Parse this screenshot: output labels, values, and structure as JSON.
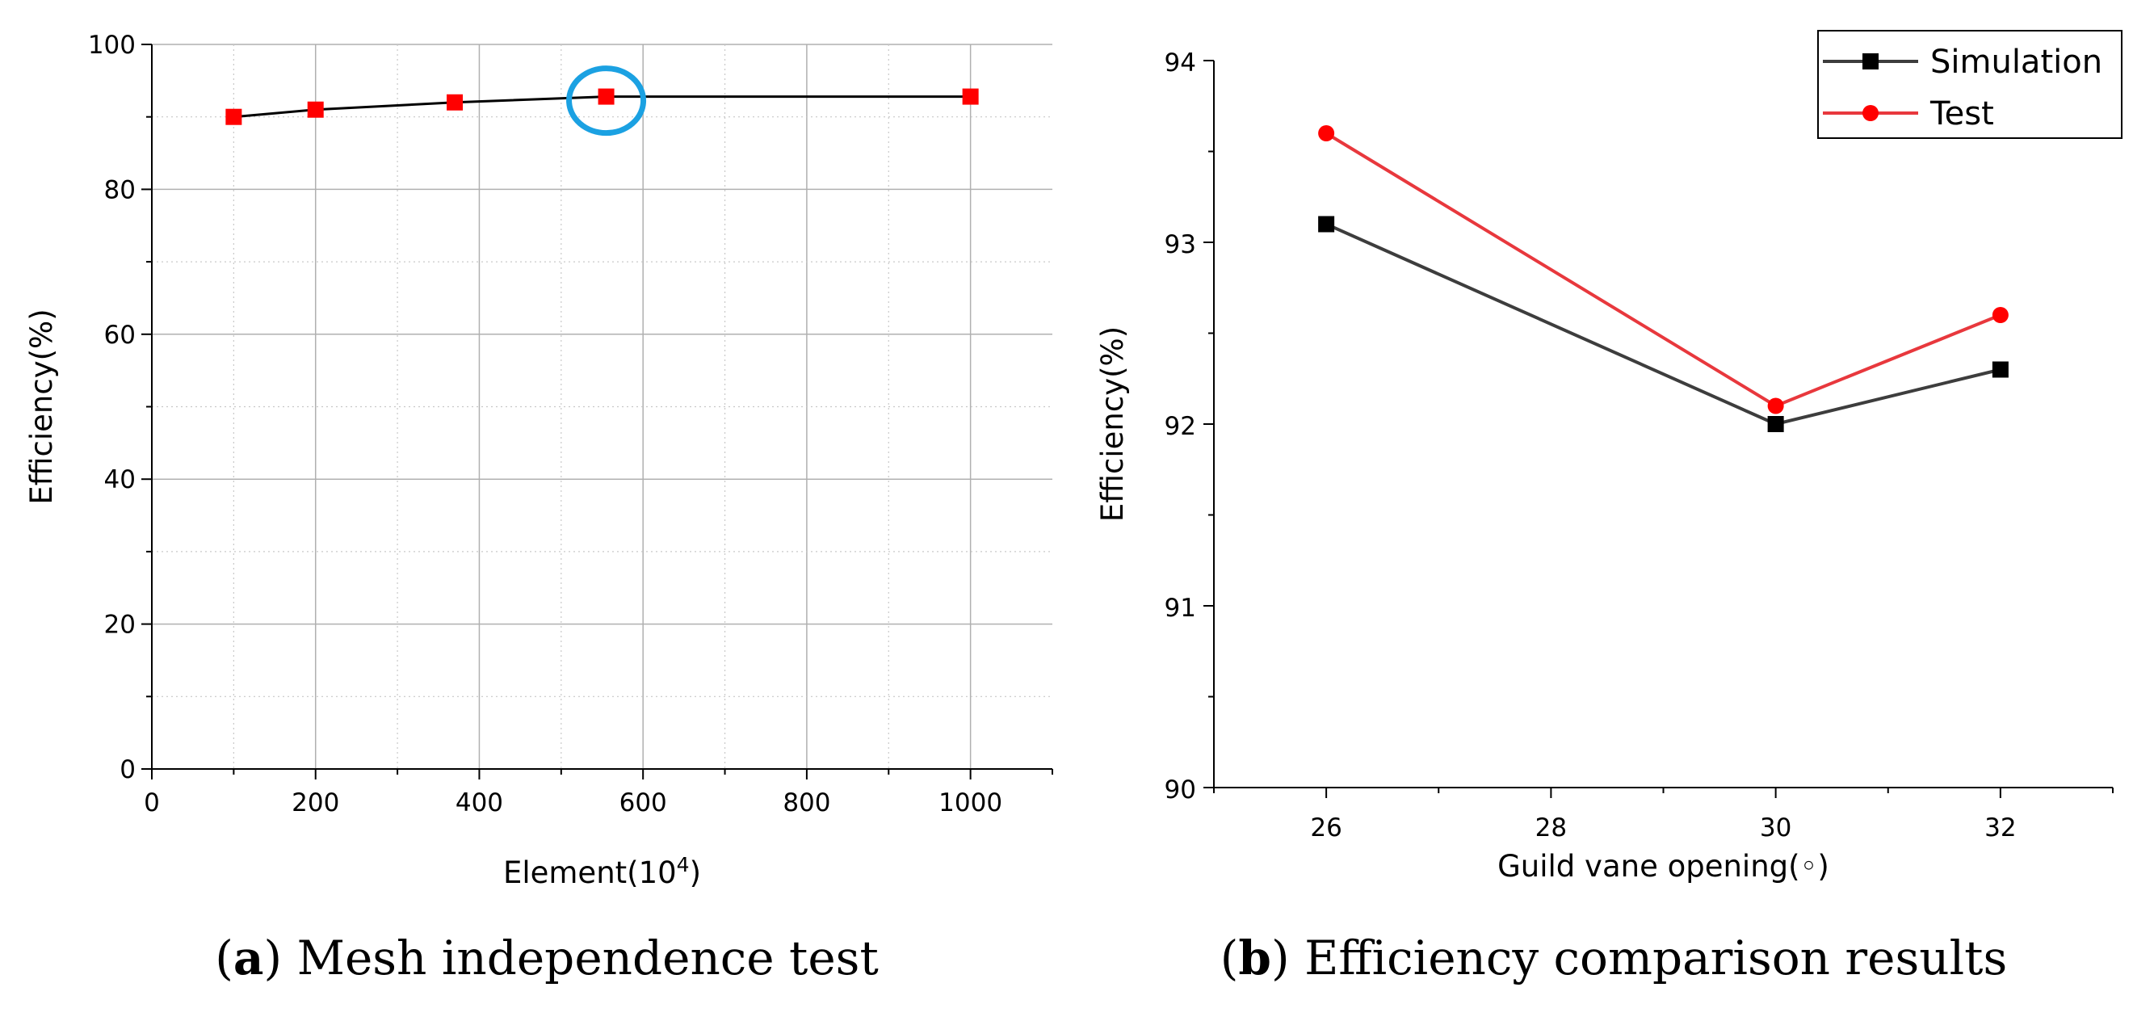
{
  "chart_data": [
    {
      "id": "a",
      "type": "line",
      "xlabel_prefix": "Element(10",
      "xlabel_sup": "4",
      "xlabel_suffix": ")",
      "ylabel": "Efficiency(%)",
      "xlim": [
        0,
        1100
      ],
      "ylim": [
        0,
        100
      ],
      "x_ticks": [
        0,
        200,
        400,
        600,
        800,
        1000
      ],
      "y_ticks": [
        0,
        20,
        40,
        60,
        80,
        100
      ],
      "x_minor_step": 100,
      "y_minor_step": 10,
      "grid": true,
      "series": [
        {
          "name": "Efficiency",
          "color": "#000000",
          "marker_color": "#ff0000",
          "marker": "square",
          "x": [
            100,
            200,
            370,
            555,
            1000
          ],
          "y": [
            90,
            91,
            92,
            92.8,
            92.8
          ]
        }
      ],
      "annotations": [
        {
          "type": "circle",
          "x": 555,
          "y": 92.8,
          "color": "#1ba1e2"
        }
      ],
      "caption": {
        "letter": "a",
        "text": "Mesh independence test"
      }
    },
    {
      "id": "b",
      "type": "line",
      "xlabel": "Guild vane opening(◦)",
      "ylabel": "Efficiency(%)",
      "xlim": [
        25,
        33
      ],
      "ylim": [
        90,
        94
      ],
      "x_ticks": [
        26,
        28,
        30,
        32
      ],
      "y_ticks": [
        90,
        91,
        92,
        93,
        94
      ],
      "x_minor_step": 1,
      "y_minor_step": 0.5,
      "grid": false,
      "legend_position": "top-right",
      "series": [
        {
          "name": "Simulation",
          "color": "#3d3d3d",
          "marker_color": "#000000",
          "marker": "square",
          "x": [
            26,
            30,
            32
          ],
          "y": [
            93.1,
            92.0,
            92.3
          ]
        },
        {
          "name": "Test",
          "color": "#e8383d",
          "marker_color": "#ff0000",
          "marker": "circle",
          "x": [
            26,
            30,
            32
          ],
          "y": [
            93.6,
            92.1,
            92.6
          ]
        }
      ],
      "caption": {
        "letter": "b",
        "text": "Efficiency comparison results"
      }
    }
  ]
}
